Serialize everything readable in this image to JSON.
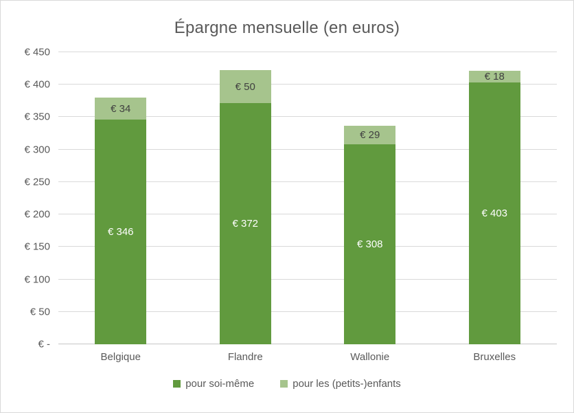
{
  "chart_data": {
    "type": "bar",
    "stacked": true,
    "title": "Épargne mensuelle (en euros)",
    "categories": [
      "Belgique",
      "Flandre",
      "Wallonie",
      "Bruxelles"
    ],
    "series": [
      {
        "name": "pour soi-même",
        "color": "#619a3e",
        "label_color": "#ffffff",
        "values": [
          346,
          372,
          308,
          403
        ],
        "labels": [
          "€ 346",
          "€ 372",
          "€ 308",
          "€ 403"
        ]
      },
      {
        "name": "pour les (petits-)enfants",
        "color": "#a6c48d",
        "label_color": "#404040",
        "values": [
          34,
          50,
          29,
          18
        ],
        "labels": [
          "€ 34",
          "€ 50",
          "€ 29",
          "€ 18"
        ]
      }
    ],
    "totals": [
      380,
      422,
      337,
      421
    ],
    "y_axis": {
      "min": 0,
      "max": 450,
      "step": 50,
      "tick_labels": [
        "€ -",
        "€ 50",
        "€ 100",
        "€ 150",
        "€ 200",
        "€ 250",
        "€ 300",
        "€ 350",
        "€ 400",
        "€ 450"
      ]
    },
    "gridlines": true,
    "legend_position": "bottom"
  }
}
